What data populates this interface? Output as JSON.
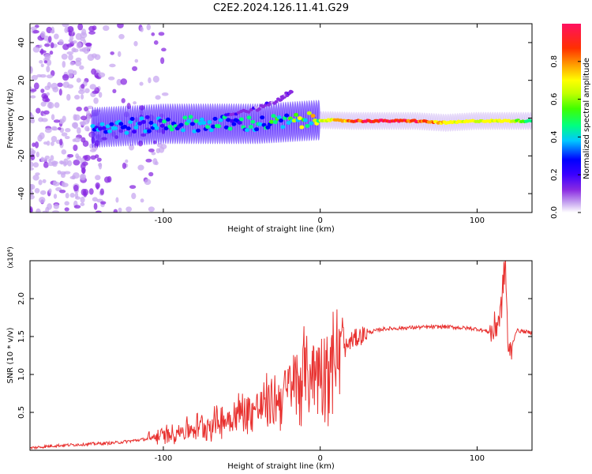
{
  "title": "C2E2.2024.126.11.41.G29",
  "chart_data": [
    {
      "type": "heatmap",
      "xlabel": "Height of straight line (km)",
      "ylabel": "Frequency (Hz)",
      "xlim": [
        -185,
        135
      ],
      "ylim": [
        -50,
        50
      ],
      "xticks": [
        -100,
        0,
        100
      ],
      "yticks": [
        -40,
        -20,
        0,
        20,
        40
      ],
      "colorbar": {
        "label": "Normalized spectral amplitude",
        "range": [
          0,
          1
        ],
        "ticks": [
          "0.0",
          "0.2",
          "0.4",
          "0.6",
          "0.8"
        ],
        "colors": [
          "#ffffff",
          "#c8a8f0",
          "#8a2be2",
          "#3b00ff",
          "#0000ff",
          "#00c8ff",
          "#00ff80",
          "#40ff00",
          "#c0ff00",
          "#ffff00",
          "#ffa000",
          "#ff3000",
          "#ff1060"
        ]
      },
      "features": {
        "noise_band_x": [
          -185,
          -140
        ],
        "main_track": [
          {
            "x": -145,
            "y": -5,
            "amp": 0.35
          },
          {
            "x": -120,
            "y": -4,
            "amp": 0.4
          },
          {
            "x": -100,
            "y": -3,
            "amp": 0.4
          },
          {
            "x": -80,
            "y": -3,
            "amp": 0.45
          },
          {
            "x": -60,
            "y": -3,
            "amp": 0.45
          },
          {
            "x": -40,
            "y": -3,
            "amp": 0.45
          },
          {
            "x": -20,
            "y": -2,
            "amp": 0.55
          },
          {
            "x": 0,
            "y": -1,
            "amp": 0.7
          },
          {
            "x": 20,
            "y": -1.5,
            "amp": 0.9
          },
          {
            "x": 40,
            "y": -1.5,
            "amp": 1.0
          },
          {
            "x": 60,
            "y": -1.5,
            "amp": 0.95
          },
          {
            "x": 80,
            "y": -2.5,
            "amp": 0.8
          },
          {
            "x": 100,
            "y": -1.5,
            "amp": 0.7
          },
          {
            "x": 120,
            "y": -1.5,
            "amp": 0.75
          },
          {
            "x": 135,
            "y": -1.5,
            "amp": 0.5
          }
        ],
        "rising_branch": [
          {
            "x": -60,
            "y": 2
          },
          {
            "x": -40,
            "y": 5
          },
          {
            "x": -25,
            "y": 10
          },
          {
            "x": -18,
            "y": 15
          }
        ]
      }
    },
    {
      "type": "line",
      "xlabel": "Height of straight line (km)",
      "ylabel": "SNR (10 * v/v)",
      "y_multiplier": "(x10⁴)",
      "xlim": [
        -185,
        135
      ],
      "ylim": [
        0,
        2.5
      ],
      "xticks": [
        -100,
        0,
        100
      ],
      "yticks": [
        0.5,
        1.0,
        1.5,
        2.0
      ],
      "ytick_labels": [
        "0.5",
        "1.0",
        "1.5",
        "2.0"
      ],
      "color": "#e8312f",
      "x": [
        -185,
        -170,
        -150,
        -130,
        -110,
        -100,
        -90,
        -80,
        -70,
        -60,
        -50,
        -40,
        -30,
        -20,
        -10,
        0,
        10,
        20,
        30,
        40,
        60,
        80,
        100,
        110,
        115,
        118,
        120,
        125,
        135
      ],
      "y": [
        0.03,
        0.06,
        0.08,
        0.1,
        0.15,
        0.2,
        0.25,
        0.3,
        0.35,
        0.4,
        0.5,
        0.55,
        0.65,
        0.8,
        1.0,
        1.1,
        1.2,
        1.45,
        1.55,
        1.6,
        1.62,
        1.63,
        1.6,
        1.55,
        1.8,
        2.5,
        1.2,
        1.58,
        1.55
      ]
    }
  ]
}
